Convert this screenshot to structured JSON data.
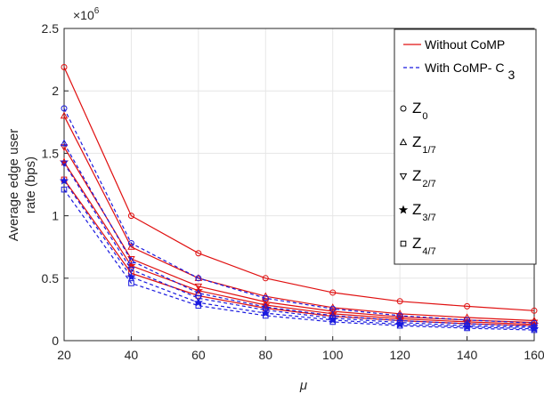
{
  "chart_data": {
    "type": "line",
    "xlabel": "μ",
    "ylabel_lines": [
      "Average edge user",
      "rate (bps)"
    ],
    "multiplier_label": "×10",
    "multiplier_exp": "6",
    "x": [
      20,
      40,
      60,
      80,
      100,
      120,
      140,
      160
    ],
    "xlim": [
      20,
      160
    ],
    "ylim": [
      0,
      2.5
    ],
    "xticks": [
      "20",
      "40",
      "60",
      "80",
      "100",
      "120",
      "140",
      "160"
    ],
    "yticks": [
      "0",
      "0.5",
      "1",
      "1.5",
      "2",
      "2.5"
    ],
    "grid": true,
    "legend_position": "top-right",
    "colors": {
      "without": "#e01010",
      "with": "#1a1adf"
    },
    "legend_lines": [
      {
        "label": "Without CoMP",
        "sub": "",
        "color": "#e01010",
        "dash": ""
      },
      {
        "label": "With CoMP- C",
        "sub": "3",
        "color": "#1a1adf",
        "dash": "4,3"
      }
    ],
    "legend_markers": [
      {
        "symbol": "circle",
        "label": "Z",
        "sub": "0"
      },
      {
        "symbol": "triangle-up",
        "label": "Z",
        "sub": "1/7"
      },
      {
        "symbol": "triangle-down",
        "label": "Z",
        "sub": "2/7"
      },
      {
        "symbol": "star",
        "label": "Z",
        "sub": "3/7"
      },
      {
        "symbol": "square",
        "label": "Z",
        "sub": "4/7"
      }
    ],
    "series": [
      {
        "group": "without",
        "marker": "circle",
        "values": [
          2.19,
          1.0,
          0.7,
          0.5,
          0.385,
          0.315,
          0.275,
          0.24
        ]
      },
      {
        "group": "without",
        "marker": "triangle-up",
        "values": [
          1.8,
          0.75,
          0.5,
          0.355,
          0.265,
          0.215,
          0.185,
          0.16
        ]
      },
      {
        "group": "without",
        "marker": "triangle-down",
        "values": [
          1.55,
          0.655,
          0.435,
          0.31,
          0.235,
          0.19,
          0.165,
          0.145
        ]
      },
      {
        "group": "without",
        "marker": "star",
        "values": [
          1.43,
          0.6,
          0.4,
          0.285,
          0.215,
          0.175,
          0.15,
          0.13
        ]
      },
      {
        "group": "without",
        "marker": "square",
        "values": [
          1.29,
          0.54,
          0.36,
          0.26,
          0.195,
          0.16,
          0.135,
          0.12
        ]
      },
      {
        "group": "with",
        "marker": "circle",
        "values": [
          1.86,
          0.78,
          0.5,
          0.34,
          0.255,
          0.2,
          0.165,
          0.14
        ]
      },
      {
        "group": "with",
        "marker": "triangle-up",
        "values": [
          1.58,
          0.64,
          0.38,
          0.27,
          0.2,
          0.16,
          0.135,
          0.115
        ]
      },
      {
        "group": "with",
        "marker": "triangle-down",
        "values": [
          1.42,
          0.57,
          0.34,
          0.245,
          0.18,
          0.145,
          0.12,
          0.105
        ]
      },
      {
        "group": "with",
        "marker": "star",
        "values": [
          1.28,
          0.51,
          0.305,
          0.22,
          0.165,
          0.13,
          0.11,
          0.095
        ]
      },
      {
        "group": "with",
        "marker": "square",
        "values": [
          1.21,
          0.46,
          0.28,
          0.2,
          0.15,
          0.12,
          0.1,
          0.085
        ]
      }
    ]
  }
}
